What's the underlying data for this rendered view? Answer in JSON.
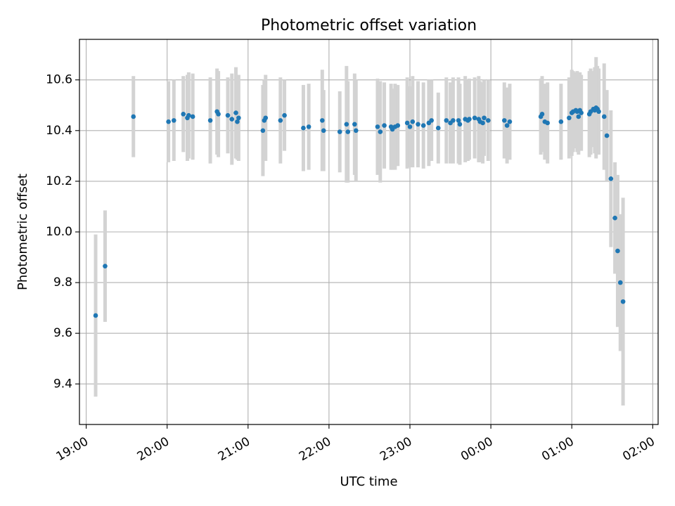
{
  "chart_data": {
    "type": "scatter",
    "title": "Photometric offset variation",
    "xlabel": "UTC time",
    "ylabel": "Photometric offset",
    "xlim": [
      "2000-01-01T18:55:00",
      "2000-01-02T02:04:00"
    ],
    "ylim": [
      9.24,
      10.76
    ],
    "grid": true,
    "x_ticks": [
      "19:00",
      "20:00",
      "21:00",
      "22:00",
      "23:00",
      "00:00",
      "01:00",
      "02:00"
    ],
    "y_ticks": [
      "9.4",
      "9.6",
      "9.8",
      "10.0",
      "10.2",
      "10.4",
      "10.6"
    ],
    "colors": {
      "points": "#1f77b4",
      "error_bars": "#d3d3d3",
      "grid": "#b0b0b0"
    },
    "series": [
      {
        "x": [
          "2000-01-01T19:07",
          "2000-01-01T19:14",
          "2000-01-01T19:35",
          "2000-01-01T20:01",
          "2000-01-01T20:05",
          "2000-01-01T20:12",
          "2000-01-01T20:15",
          "2000-01-01T20:16",
          "2000-01-01T20:19",
          "2000-01-01T20:32",
          "2000-01-01T20:37",
          "2000-01-01T20:38",
          "2000-01-01T20:45",
          "2000-01-01T20:48",
          "2000-01-01T20:51",
          "2000-01-01T20:52",
          "2000-01-01T20:53",
          "2000-01-01T21:11",
          "2000-01-01T21:12",
          "2000-01-01T21:13",
          "2000-01-01T21:24",
          "2000-01-01T21:27",
          "2000-01-01T21:41",
          "2000-01-01T21:45",
          "2000-01-01T21:55",
          "2000-01-01T21:56",
          "2000-01-01T22:08",
          "2000-01-01T22:13",
          "2000-01-01T22:14",
          "2000-01-01T22:19",
          "2000-01-01T22:20",
          "2000-01-01T22:36",
          "2000-01-01T22:38",
          "2000-01-01T22:41",
          "2000-01-01T22:46",
          "2000-01-01T22:47",
          "2000-01-01T22:49",
          "2000-01-01T22:51",
          "2000-01-01T22:58",
          "2000-01-01T23:00",
          "2000-01-01T23:02",
          "2000-01-01T23:06",
          "2000-01-01T23:10",
          "2000-01-01T23:14",
          "2000-01-01T23:16",
          "2000-01-01T23:21",
          "2000-01-01T23:27",
          "2000-01-01T23:30",
          "2000-01-01T23:32",
          "2000-01-01T23:36",
          "2000-01-01T23:37",
          "2000-01-01T23:41",
          "2000-01-01T23:43",
          "2000-01-01T23:44",
          "2000-01-01T23:48",
          "2000-01-01T23:51",
          "2000-01-01T23:52",
          "2000-01-01T23:54",
          "2000-01-01T23:55",
          "2000-01-01T23:58",
          "2000-01-02T00:10",
          "2000-01-02T00:12",
          "2000-01-02T00:14",
          "2000-01-02T00:37",
          "2000-01-02T00:38",
          "2000-01-02T00:40",
          "2000-01-02T00:42",
          "2000-01-02T00:52",
          "2000-01-02T00:58",
          "2000-01-02T01:00",
          "2000-01-02T01:01",
          "2000-01-02T01:03",
          "2000-01-02T01:04",
          "2000-01-02T01:05",
          "2000-01-02T01:06",
          "2000-01-02T01:07",
          "2000-01-02T01:13",
          "2000-01-02T01:14",
          "2000-01-02T01:16",
          "2000-01-02T01:17",
          "2000-01-02T01:18",
          "2000-01-02T01:19",
          "2000-01-02T01:20",
          "2000-01-02T01:24",
          "2000-01-02T01:26",
          "2000-01-02T01:29",
          "2000-01-02T01:32",
          "2000-01-02T01:34",
          "2000-01-02T01:36",
          "2000-01-02T01:38"
        ],
        "y": [
          9.67,
          9.865,
          10.455,
          10.435,
          10.44,
          10.465,
          10.45,
          10.46,
          10.455,
          10.44,
          10.475,
          10.465,
          10.46,
          10.445,
          10.47,
          10.435,
          10.45,
          10.4,
          10.44,
          10.45,
          10.44,
          10.46,
          10.41,
          10.415,
          10.44,
          10.4,
          10.395,
          10.425,
          10.395,
          10.425,
          10.4,
          10.415,
          10.395,
          10.42,
          10.415,
          10.405,
          10.415,
          10.42,
          10.43,
          10.415,
          10.435,
          10.425,
          10.42,
          10.43,
          10.44,
          10.41,
          10.44,
          10.43,
          10.44,
          10.44,
          10.425,
          10.445,
          10.44,
          10.445,
          10.45,
          10.445,
          10.435,
          10.43,
          10.45,
          10.44,
          10.44,
          10.42,
          10.435,
          10.455,
          10.465,
          10.435,
          10.43,
          10.435,
          10.45,
          10.47,
          10.475,
          10.48,
          10.475,
          10.455,
          10.48,
          10.47,
          10.465,
          10.475,
          10.485,
          10.48,
          10.49,
          10.485,
          10.475,
          10.455,
          10.38,
          10.21,
          10.055,
          9.925,
          9.8,
          9.725
        ],
        "yerr": [
          0.32,
          0.22,
          0.16,
          0.16,
          0.16,
          0.15,
          0.17,
          0.17,
          0.17,
          0.17,
          0.17,
          0.17,
          0.15,
          0.18,
          0.18,
          0.15,
          0.17,
          0.18,
          0.16,
          0.17,
          0.17,
          0.14,
          0.17,
          0.17,
          0.2,
          0.16,
          0.16,
          0.23,
          0.2,
          0.2,
          0.2,
          0.19,
          0.2,
          0.17,
          0.17,
          0.16,
          0.17,
          0.16,
          0.18,
          0.16,
          0.18,
          0.17,
          0.17,
          0.17,
          0.16,
          0.14,
          0.17,
          0.16,
          0.17,
          0.17,
          0.16,
          0.17,
          0.16,
          0.16,
          0.16,
          0.17,
          0.16,
          0.16,
          0.15,
          0.16,
          0.15,
          0.15,
          0.15,
          0.15,
          0.15,
          0.15,
          0.16,
          0.15,
          0.16,
          0.17,
          0.16,
          0.15,
          0.16,
          0.15,
          0.15,
          0.15,
          0.17,
          0.17,
          0.15,
          0.17,
          0.2,
          0.17,
          0.17,
          0.21,
          0.18,
          0.27,
          0.22,
          0.3,
          0.27,
          0.41
        ]
      }
    ]
  }
}
